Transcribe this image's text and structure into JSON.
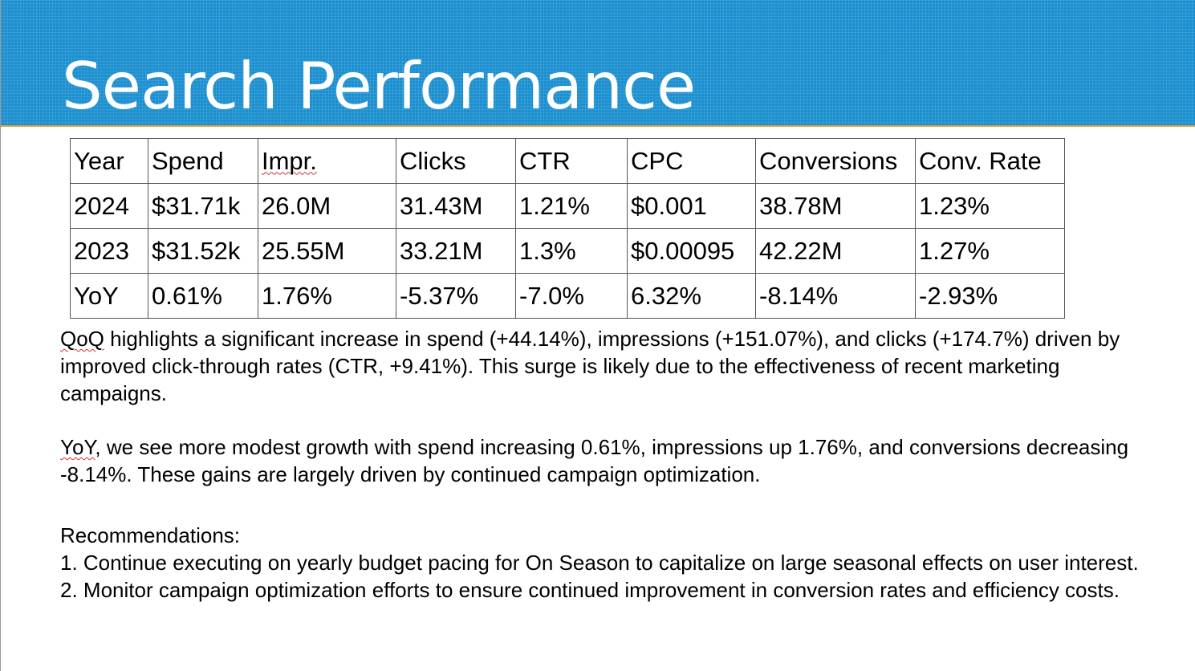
{
  "slide": {
    "title": "Search Performance"
  },
  "table": {
    "headers": [
      "Year",
      "Spend",
      "Impr.",
      "Clicks",
      "CTR",
      "CPC",
      "Conversions",
      "Conv. Rate"
    ],
    "rows": [
      [
        "2024",
        "$31.71k",
        "26.0M",
        "31.43M",
        "1.21%",
        "$0.001",
        "38.78M",
        "1.23%"
      ],
      [
        "2023",
        "$31.52k",
        "25.55M",
        "33.21M",
        "1.3%",
        "$0.00095",
        "42.22M",
        "1.27%"
      ],
      [
        "YoY",
        "0.61%",
        "1.76%",
        "-5.37%",
        "-7.0%",
        "6.32%",
        "-8.14%",
        "-2.93%"
      ]
    ]
  },
  "body": {
    "qoq_lead": "QoQ",
    "qoq_text": " highlights a significant increase in spend (+44.14%), impressions (+151.07%), and clicks (+174.7%) driven by improved click-through rates (CTR, +9.41%). This surge is likely due to the effectiveness of recent marketing campaigns.",
    "yoy_lead": "YoY",
    "yoy_text": ", we see more modest growth with spend increasing 0.61%, impressions up 1.76%, and conversions decreasing -8.14%. These gains are largely driven by continued campaign optimization.",
    "recommendations_heading": "Recommendations:",
    "recommendations": [
      "1. Continue executing on yearly budget pacing for On Season to capitalize on large seasonal effects on user interest.",
      "2. Monitor campaign optimization efforts to ensure continued improvement in conversion rates and efficiency costs."
    ]
  },
  "colors": {
    "header_band": "#1b8fcf",
    "header_accent_line": "#d9a441",
    "title_text": "#ffffff",
    "spellcheck_underline": "#d23030"
  }
}
